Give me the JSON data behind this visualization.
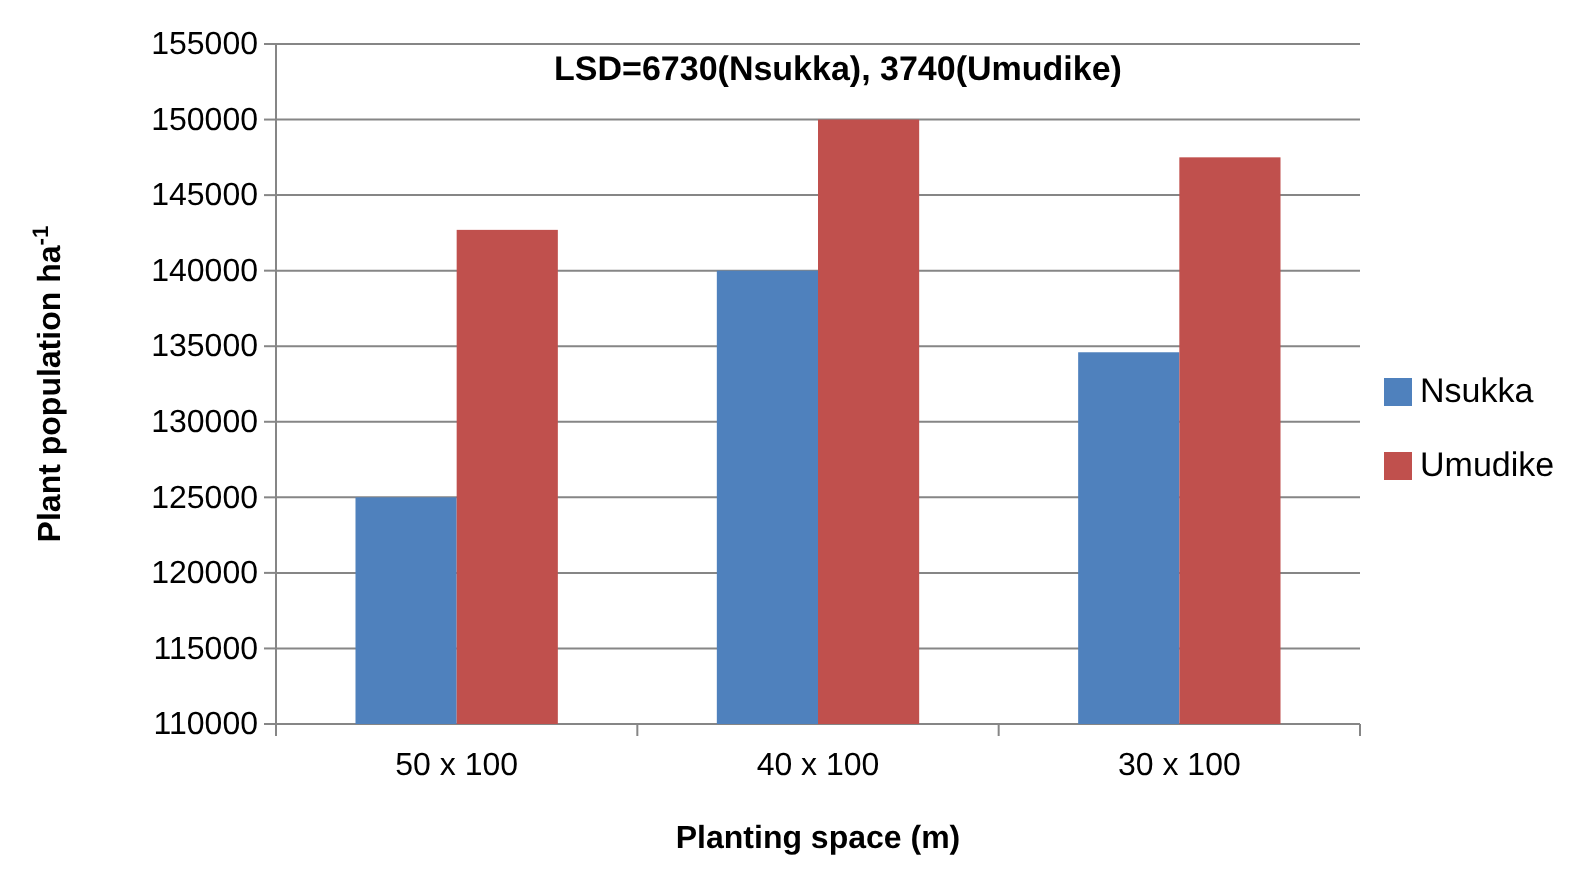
{
  "chart_data": {
    "type": "bar",
    "title": "LSD=6730(Nsukka), 3740(Umudike)",
    "xlabel": "Planting space (m)",
    "ylabel": "Plant population ha$^{-1}$",
    "categories": [
      "50 x 100",
      "40 x 100",
      "30 x 100"
    ],
    "series": [
      {
        "name": "Nsukka",
        "color": "#4f81bd",
        "values": [
          125000,
          140000,
          134600
        ]
      },
      {
        "name": "Umudike",
        "color": "#c0504d",
        "values": [
          142700,
          150000,
          147500
        ]
      }
    ],
    "ylim": [
      110000,
      155000
    ],
    "yticks": [
      110000,
      115000,
      120000,
      125000,
      130000,
      135000,
      140000,
      145000,
      150000,
      155000
    ],
    "grid": "y",
    "legend": "right"
  }
}
